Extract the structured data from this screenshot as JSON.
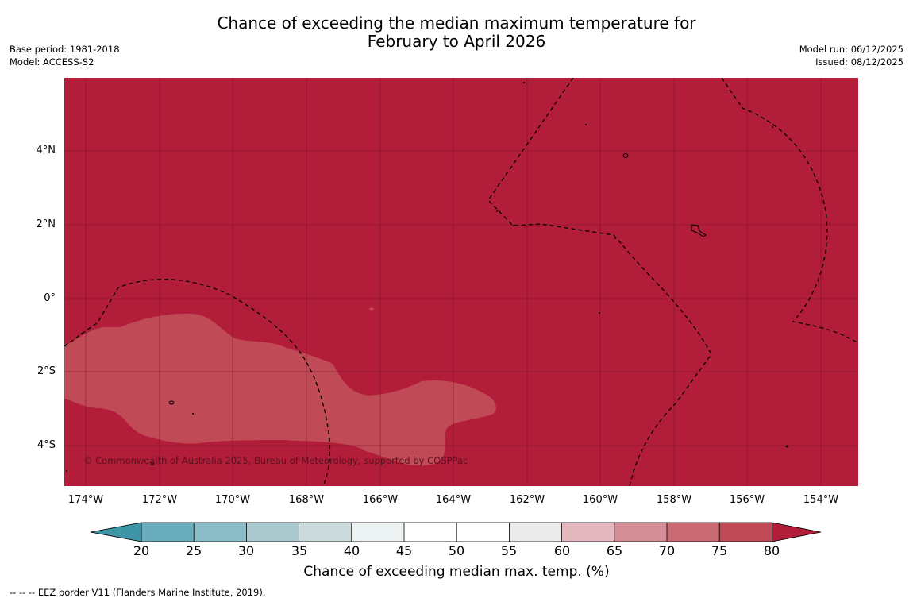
{
  "title": {
    "line1": "Chance of exceeding the median maximum temperature for",
    "line2": "February to April 2026"
  },
  "meta_left": {
    "base_period": "Base period: 1981-2018",
    "model": "Model: ACCESS-S2"
  },
  "meta_right": {
    "model_run": "Model run: 06/12/2025",
    "issued": "Issued: 08/12/2025"
  },
  "map": {
    "latitude_labels": [
      "4°N",
      "2°N",
      "0°",
      "2°S",
      "4°S"
    ],
    "longitude_labels": [
      "174°W",
      "172°W",
      "170°W",
      "168°W",
      "166°W",
      "164°W",
      "162°W",
      "160°W",
      "158°W",
      "156°W",
      "154°W"
    ],
    "background_fill_category": "80+",
    "background_color": "#B21E3A",
    "region_fill_category": "75-80",
    "region_color": "#C04A56",
    "grid_color": "#7a1526",
    "eez_border_style": "dashed",
    "copyright": "© Commonwealth of Australia 2025, Bureau of Meteorology, supported by COSPPac"
  },
  "colorbar": {
    "tick_labels": [
      "20",
      "25",
      "30",
      "35",
      "40",
      "45",
      "50",
      "55",
      "60",
      "65",
      "70",
      "75",
      "80"
    ],
    "colors": [
      "#3C96A6",
      "#69ADBE",
      "#8BBCC8",
      "#AAC9CE",
      "#CCDADD",
      "#EDF2F3",
      "#FFFFFF",
      "#FFFFFF",
      "#EBEBEB",
      "#E3B8BE",
      "#D48E97",
      "#CA6A74",
      "#C04A56",
      "#B21E3A"
    ],
    "title": "Chance of exceeding median max. temp. (%)"
  },
  "footnote": "-- -- -- EEZ border V11 (Flanders Marine Institute, 2019)."
}
